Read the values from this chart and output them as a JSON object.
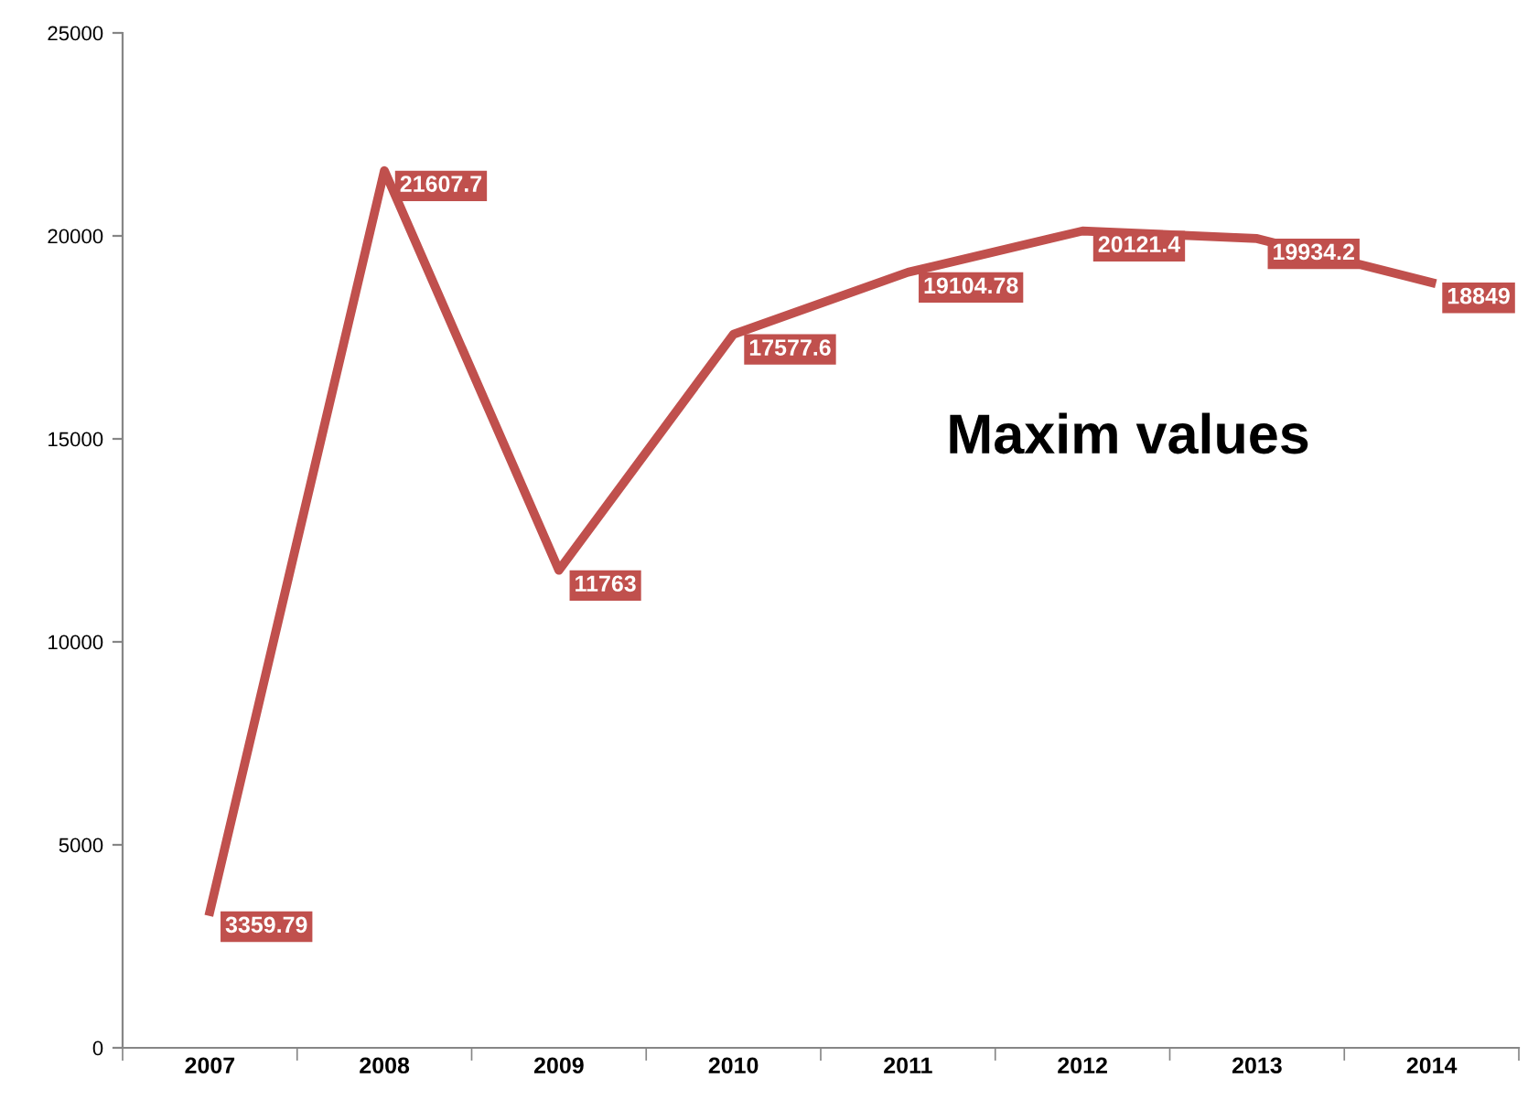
{
  "chart_data": {
    "type": "line",
    "title": "Maxim values",
    "categories": [
      "2007",
      "2008",
      "2009",
      "2010",
      "2011",
      "2012",
      "2013",
      "2014"
    ],
    "series": [
      {
        "color": "#c0504d",
        "values": [
          3359.79,
          21607.7,
          11763,
          17577.6,
          19104.78,
          20121.4,
          19934.2,
          18849
        ],
        "value_labels": [
          "3359.79",
          "21607.7",
          "11763",
          "17577.6",
          "19104.78",
          "20121.4",
          "19934.2",
          "18849"
        ]
      }
    ],
    "ylim": [
      0,
      25000
    ],
    "yticks": [
      0,
      5000,
      10000,
      15000,
      20000,
      25000
    ],
    "data_labels": true,
    "grid": false,
    "legend": false,
    "marker": "none",
    "line_style": "solid"
  }
}
